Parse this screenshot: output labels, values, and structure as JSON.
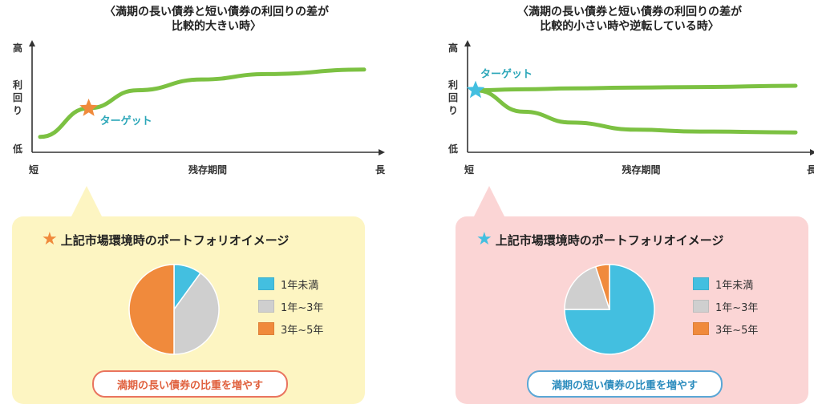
{
  "colors": {
    "curve": "#7cc142",
    "axis": "#333333",
    "left_panel_bg": "#fdf5c2",
    "right_panel_bg": "#fbd5d5",
    "star_left": "#f08a3c",
    "star_right": "#43bfe0",
    "target_text": "#2aa6b8",
    "pill_left_border": "#e9745f",
    "pill_left_text": "#e0613e",
    "pill_right_border": "#5aa7d6",
    "pill_right_text": "#2a8bbd"
  },
  "left": {
    "title_line1": "〈満期の長い債券と短い債券の利回りの差が",
    "title_line2": "比較的大きい時〉",
    "panel_title": "上記市場環境時のポートフォリオイメージ",
    "pill": "満期の長い債券の比重を増やす"
  },
  "right": {
    "title_line1": "〈満期の長い債券と短い債券の利回りの差が",
    "title_line2": "比較的小さい時や逆転している時〉",
    "panel_title": "上記市場環境時のポートフォリオイメージ",
    "pill": "満期の短い債券の比重を増やす"
  },
  "chart_data": [
    {
      "type": "line",
      "title": "〈満期の長い債券と短い債券の利回りの差が比較的大きい時〉",
      "xlabel": "残存期間",
      "ylabel": "利回り",
      "x_tick_labels": [
        "短",
        "長"
      ],
      "y_tick_labels": [
        "低",
        "高"
      ],
      "x": [
        0,
        0.15,
        0.3,
        0.5,
        0.7,
        1.0
      ],
      "series": [
        {
          "values": [
            0.1,
            0.42,
            0.62,
            0.74,
            0.8,
            0.85
          ]
        }
      ],
      "xlim": [
        0,
        1
      ],
      "ylim": [
        0,
        1
      ],
      "annotations": [
        {
          "text": "ターゲット",
          "x": 0.15,
          "y": 0.42,
          "marker": "star"
        }
      ]
    },
    {
      "type": "line",
      "title": "〈満期の長い債券と短い債券の利回りの差が比較的小さい時や逆転している時〉",
      "xlabel": "残存期間",
      "ylabel": "利回り",
      "x_tick_labels": [
        "短",
        "長"
      ],
      "y_tick_labels": [
        "低",
        "高"
      ],
      "x": [
        0,
        0.15,
        0.3,
        0.5,
        0.7,
        1.0
      ],
      "series": [
        {
          "values": [
            0.62,
            0.63,
            0.64,
            0.65,
            0.655,
            0.67
          ]
        },
        {
          "values": [
            0.62,
            0.38,
            0.26,
            0.18,
            0.16,
            0.15
          ]
        }
      ],
      "xlim": [
        0,
        1
      ],
      "ylim": [
        0,
        1
      ],
      "annotations": [
        {
          "text": "ターゲット",
          "x": 0.0,
          "y": 0.62,
          "marker": "star"
        }
      ]
    },
    {
      "type": "pie",
      "title": "上記市場環境時のポートフォリオイメージ",
      "categories": [
        "1年未満",
        "1年~3年",
        "3年~5年"
      ],
      "values": [
        10,
        40,
        50
      ],
      "colors": [
        "#43bfe0",
        "#cfcfcf",
        "#f08a3c"
      ]
    },
    {
      "type": "pie",
      "title": "上記市場環境時のポートフォリオイメージ",
      "categories": [
        "1年未満",
        "1年~3年",
        "3年~5年"
      ],
      "values": [
        75,
        20,
        5
      ],
      "colors": [
        "#43bfe0",
        "#cfcfcf",
        "#f08a3c"
      ]
    }
  ]
}
